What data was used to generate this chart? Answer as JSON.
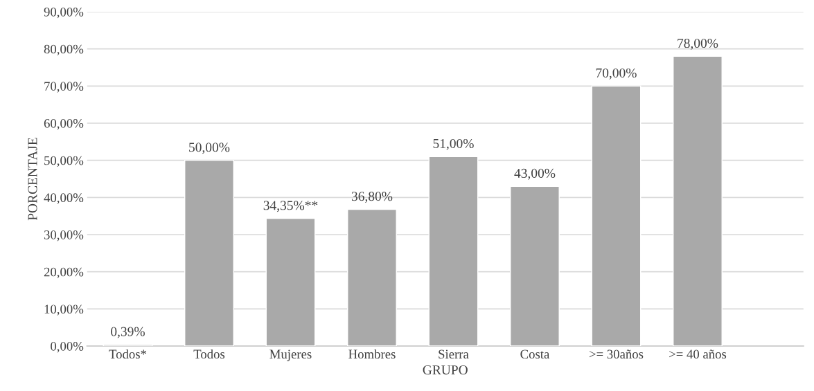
{
  "chart_data": {
    "type": "bar",
    "xlabel": "GRUPO",
    "ylabel": "PORCENTAJE",
    "categories": [
      "Todos*",
      "Todos",
      "Mujeres",
      "Hombres",
      "Sierra",
      "Costa",
      ">= 30años",
      ">= 40 años",
      null
    ],
    "values": [
      0.39,
      50,
      34.35,
      36.8,
      51,
      43,
      70,
      78,
      null
    ],
    "value_labels": [
      "0,39%",
      "50,00%",
      "34,35%**",
      "36,80%",
      "51,00%",
      "43,00%",
      "70,00%",
      "78,00%",
      null
    ],
    "color": "#a9a9a9",
    "ylim": [
      0,
      90
    ],
    "yticks": [
      {
        "value": 0,
        "label": "0,00%"
      },
      {
        "value": 10,
        "label": "10,00%"
      },
      {
        "value": 20,
        "label": "20,00%"
      },
      {
        "value": 30,
        "label": "30,00%"
      },
      {
        "value": 40,
        "label": "40,00%"
      },
      {
        "value": 50,
        "label": "50,00%"
      },
      {
        "value": 60,
        "label": "60,00%"
      },
      {
        "value": 70,
        "label": "70,00%"
      },
      {
        "value": 80,
        "label": "80,00%"
      },
      {
        "value": 90,
        "label": "90,00%"
      }
    ],
    "grid": "y"
  }
}
